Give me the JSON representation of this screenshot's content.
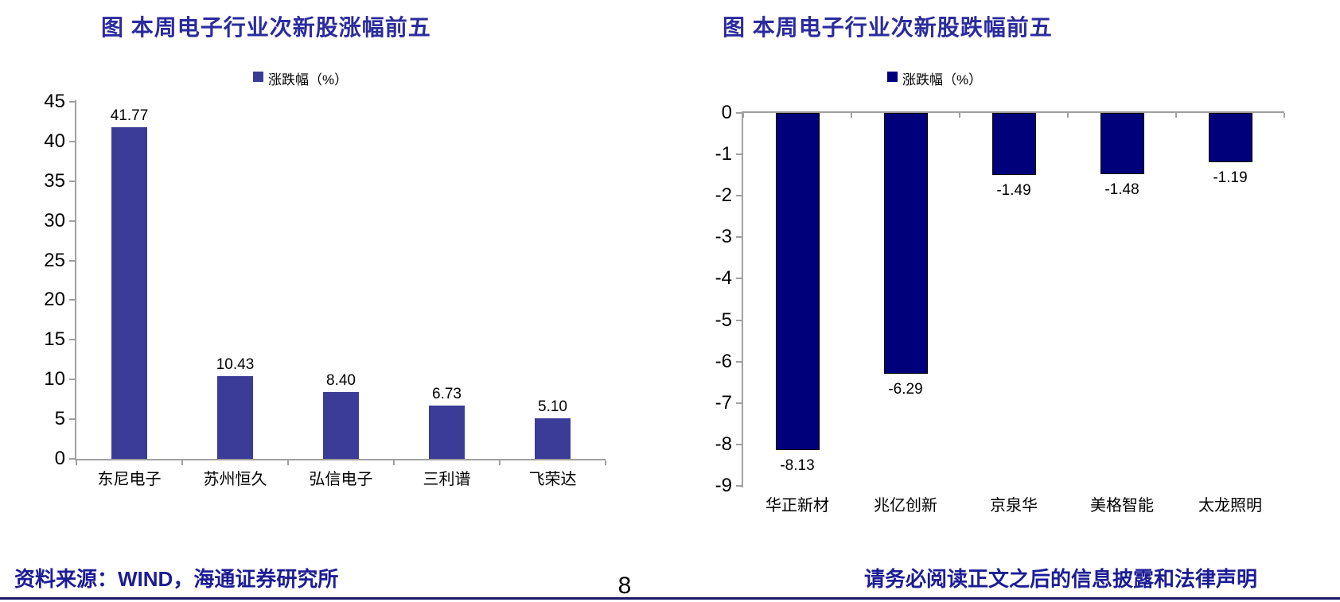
{
  "footer": {
    "source": "资料来源：WIND，海通证券研究所",
    "page_number": "8",
    "disclaimer": "请务必阅读正文之后的信息披露和法律声明"
  },
  "chart_data": [
    {
      "type": "bar",
      "title": "图 本周电子行业次新股涨幅前五",
      "legend": "涨跌幅（%）",
      "categories": [
        "东尼电子",
        "苏州恒久",
        "弘信电子",
        "三利谱",
        "飞荣达"
      ],
      "values": [
        41.77,
        10.43,
        8.4,
        6.73,
        5.1
      ],
      "value_labels": [
        "41.77",
        "10.43",
        "8.40",
        "6.73",
        "5.10"
      ],
      "ylim": [
        0,
        45
      ],
      "yticks": [
        45,
        40,
        35,
        30,
        25,
        20,
        15,
        10,
        5,
        0
      ],
      "bar_color": "#3B3B98",
      "bar_border": "",
      "legend_position": "top",
      "grid": false,
      "axis_color": "#A0A0A0"
    },
    {
      "type": "bar",
      "title": "图 本周电子行业次新股跌幅前五",
      "legend": "涨跌幅（%）",
      "categories": [
        "华正新材",
        "兆亿创新",
        "京泉华",
        "美格智能",
        "太龙照明"
      ],
      "values": [
        -8.13,
        -6.29,
        -1.49,
        -1.48,
        -1.19
      ],
      "value_labels": [
        "-8.13",
        "-6.29",
        "-1.49",
        "-1.48",
        "-1.19"
      ],
      "ylim": [
        -9,
        0
      ],
      "yticks": [
        0,
        -1,
        -2,
        -3,
        -4,
        -5,
        -6,
        -7,
        -8,
        -9
      ],
      "bar_color": "#00007B",
      "bar_border": "#000000",
      "legend_position": "top",
      "grid": false,
      "axis_color": "#A0A0A0"
    }
  ]
}
